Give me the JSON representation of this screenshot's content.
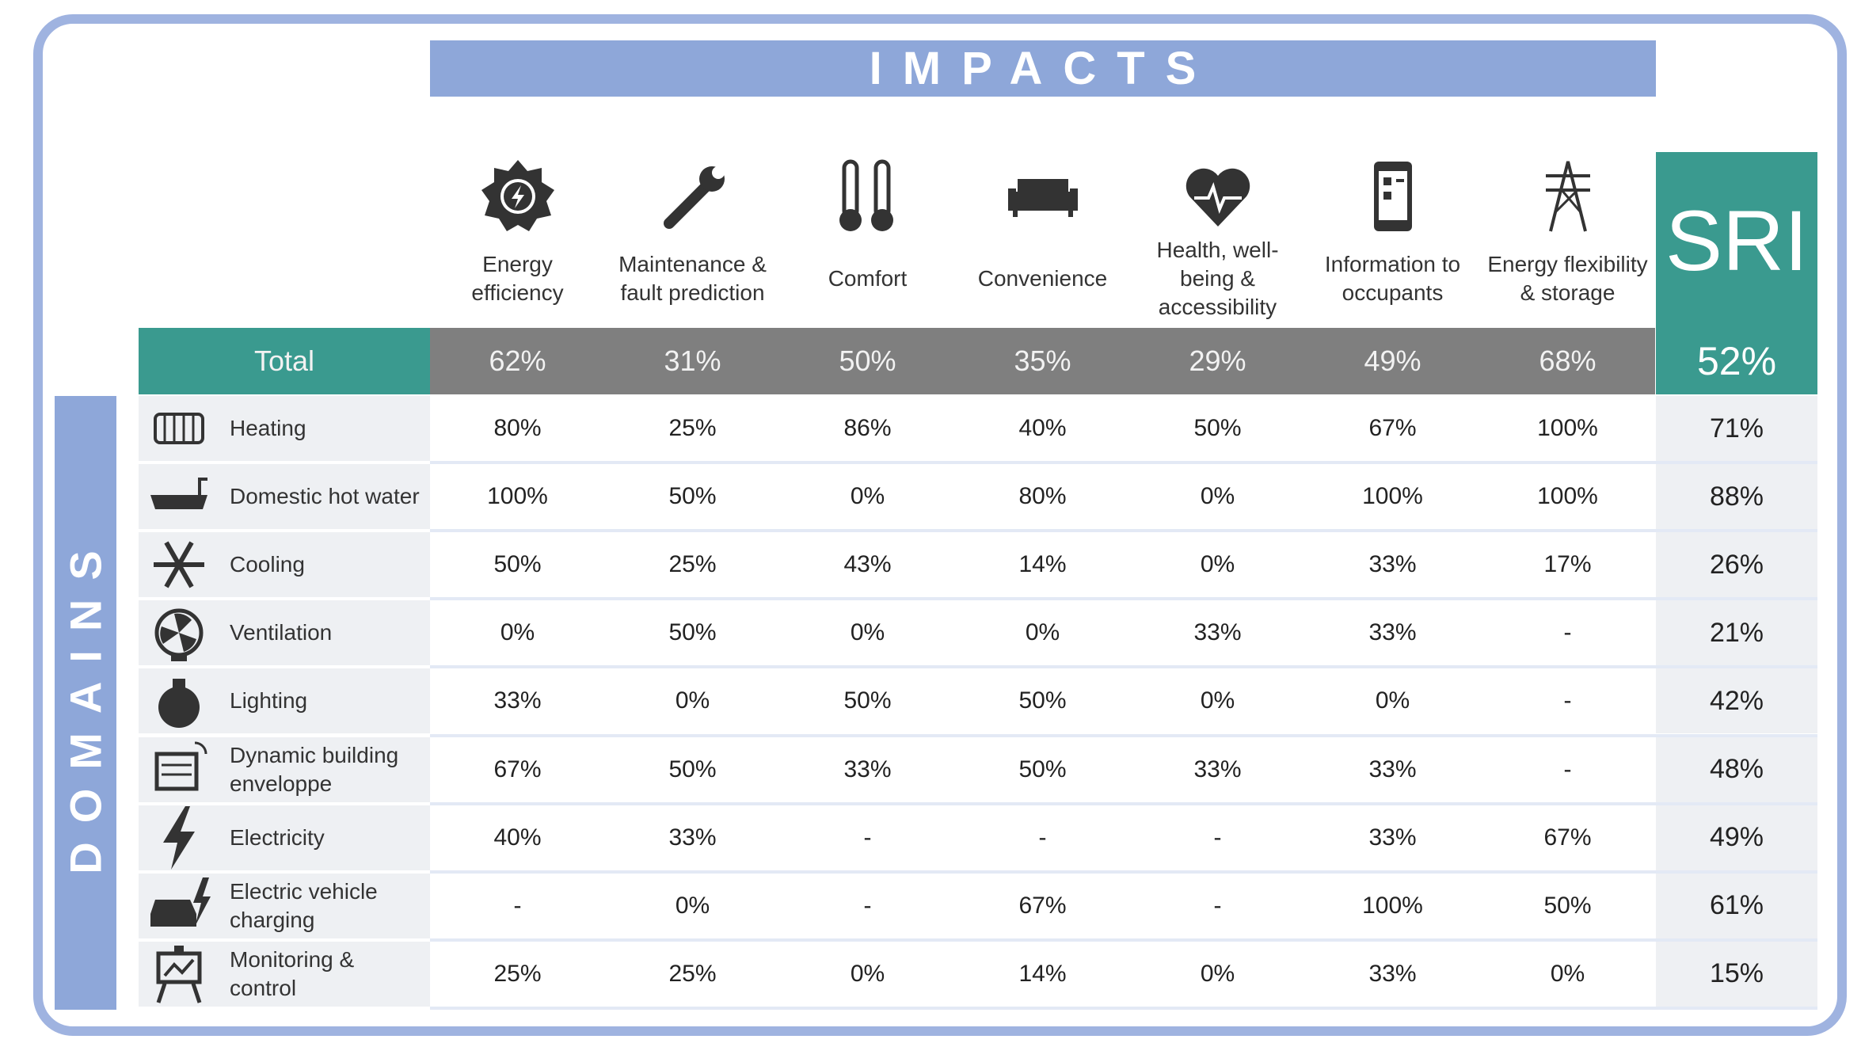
{
  "header": {
    "title": "IMPACTS",
    "side_label": "DOMAINS",
    "sri_label": "SRI"
  },
  "table": {
    "columns": [
      "Energy efficiency",
      "Maintenance & fault prediction",
      "Comfort",
      "Convenience",
      "Health, well-being & accessibility",
      "Information to occupants",
      "Energy flexibility & storage"
    ],
    "total": {
      "label": "Total",
      "values": [
        "62%",
        "31%",
        "50%",
        "35%",
        "29%",
        "49%",
        "68%"
      ],
      "sri": "52%"
    },
    "rows": [
      {
        "label": "Heating",
        "values": [
          "80%",
          "25%",
          "86%",
          "40%",
          "50%",
          "67%",
          "100%"
        ],
        "sri": "71%"
      },
      {
        "label": "Domestic hot water",
        "values": [
          "100%",
          "50%",
          "0%",
          "80%",
          "0%",
          "100%",
          "100%"
        ],
        "sri": "88%"
      },
      {
        "label": "Cooling",
        "values": [
          "50%",
          "25%",
          "43%",
          "14%",
          "0%",
          "33%",
          "17%"
        ],
        "sri": "26%"
      },
      {
        "label": "Ventilation",
        "values": [
          "0%",
          "50%",
          "0%",
          "0%",
          "33%",
          "33%",
          "-"
        ],
        "sri": "21%"
      },
      {
        "label": "Lighting",
        "values": [
          "33%",
          "0%",
          "50%",
          "50%",
          "0%",
          "0%",
          "-"
        ],
        "sri": "42%"
      },
      {
        "label": "Dynamic building enveloppe",
        "values": [
          "67%",
          "50%",
          "33%",
          "50%",
          "33%",
          "33%",
          "-"
        ],
        "sri": "48%"
      },
      {
        "label": "Electricity",
        "values": [
          "40%",
          "33%",
          "-",
          "-",
          "-",
          "33%",
          "67%"
        ],
        "sri": "49%"
      },
      {
        "label": "Electric vehicle charging",
        "values": [
          "-",
          "0%",
          "-",
          "67%",
          "-",
          "100%",
          "50%"
        ],
        "sri": "61%"
      },
      {
        "label": "Monitoring & control",
        "values": [
          "25%",
          "25%",
          "0%",
          "14%",
          "0%",
          "33%",
          "0%"
        ],
        "sri": "15%"
      }
    ]
  }
}
